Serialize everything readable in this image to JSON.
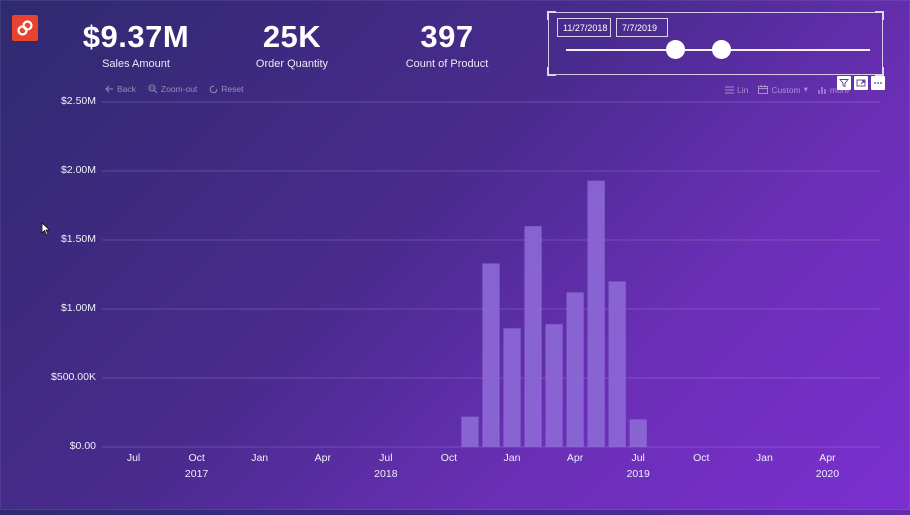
{
  "kpis": [
    {
      "value": "$9.37M",
      "label": "Sales Amount"
    },
    {
      "value": "25K",
      "label": "Order Quantity"
    },
    {
      "value": "397",
      "label": "Count of Product"
    }
  ],
  "slicer": {
    "start_date": "11/27/2018",
    "end_date": "7/7/2019"
  },
  "toolbar": {
    "back": "Back",
    "zoom_out": "Zoom-out",
    "reset": "Reset",
    "lin": "Lin",
    "custom": "Custom",
    "more": "more"
  },
  "colors": {
    "bar": "#8d69d6",
    "logo": "#e8432f",
    "grid": "rgba(255,255,255,0.16)"
  },
  "chart_data": {
    "type": "bar",
    "ylim": [
      0,
      2500000
    ],
    "y_ticks": [
      {
        "value": 0,
        "label": "$0.00"
      },
      {
        "value": 500000,
        "label": "$500.00K"
      },
      {
        "value": 1000000,
        "label": "$1.00M"
      },
      {
        "value": 1500000,
        "label": "$1.50M"
      },
      {
        "value": 2000000,
        "label": "$2.00M"
      },
      {
        "value": 2500000,
        "label": "$2.50M"
      }
    ],
    "x_range": [
      "2017-06",
      "2020-07"
    ],
    "x_ticks": [
      {
        "month": "2017-07",
        "label": "Jul"
      },
      {
        "month": "2017-10",
        "label": "Oct"
      },
      {
        "month": "2018-01",
        "label": "Jan"
      },
      {
        "month": "2018-04",
        "label": "Apr"
      },
      {
        "month": "2018-07",
        "label": "Jul"
      },
      {
        "month": "2018-10",
        "label": "Oct"
      },
      {
        "month": "2019-01",
        "label": "Jan"
      },
      {
        "month": "2019-04",
        "label": "Apr"
      },
      {
        "month": "2019-07",
        "label": "Jul"
      },
      {
        "month": "2019-10",
        "label": "Oct"
      },
      {
        "month": "2020-01",
        "label": "Jan"
      },
      {
        "month": "2020-04",
        "label": "Apr"
      }
    ],
    "year_labels": [
      {
        "month": "2017-10",
        "label": "2017"
      },
      {
        "month": "2018-07",
        "label": "2018"
      },
      {
        "month": "2019-07",
        "label": "2019"
      },
      {
        "month": "2020-04",
        "label": "2020"
      }
    ],
    "categories": [
      "2018-11",
      "2018-12",
      "2019-01",
      "2019-02",
      "2019-03",
      "2019-04",
      "2019-05",
      "2019-06",
      "2019-07"
    ],
    "values": [
      220000,
      1330000,
      860000,
      1600000,
      890000,
      1120000,
      1930000,
      1200000,
      200000
    ],
    "grid": true,
    "legend": "none"
  }
}
